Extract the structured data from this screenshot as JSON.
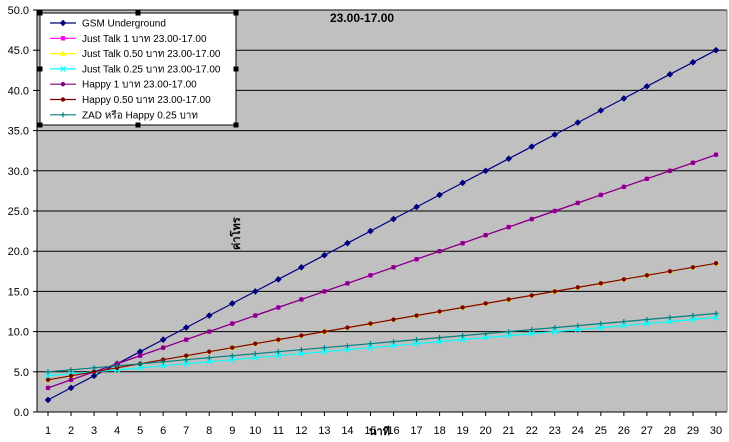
{
  "chart_data": {
    "type": "line",
    "title": "23.00-17.00",
    "xlabel": "นาที",
    "ylabel": "ค่าโทร",
    "ylim": [
      0,
      50
    ],
    "y_ticks": [
      "0.0",
      "5.0",
      "10.0",
      "15.0",
      "20.0",
      "25.0",
      "30.0",
      "35.0",
      "40.0",
      "45.0",
      "50.0"
    ],
    "x": [
      1,
      2,
      3,
      4,
      5,
      6,
      7,
      8,
      9,
      10,
      11,
      12,
      13,
      14,
      15,
      16,
      17,
      18,
      19,
      20,
      21,
      22,
      23,
      24,
      25,
      26,
      27,
      28,
      29,
      30
    ],
    "grid": "horizontal",
    "legend_position": "top-left",
    "plot_background": "#c0c0c0",
    "series": [
      {
        "name": "GSM Underground",
        "color": "#000080",
        "marker": "diamond",
        "values": [
          1.5,
          3,
          4.5,
          6,
          7.5,
          9,
          10.5,
          12,
          13.5,
          15,
          16.5,
          18,
          19.5,
          21,
          22.5,
          24,
          25.5,
          27,
          28.5,
          30,
          31.5,
          33,
          34.5,
          36,
          37.5,
          39,
          40.5,
          42,
          43.5,
          45
        ]
      },
      {
        "name": "Just Talk 1 บาท 23.00-17.00",
        "color": "#ff00ff",
        "marker": "square",
        "values": [
          3,
          4,
          5,
          6,
          7,
          8,
          9,
          10,
          11,
          12,
          13,
          14,
          15,
          16,
          17,
          18,
          19,
          20,
          21,
          22,
          23,
          24,
          25,
          26,
          27,
          28,
          29,
          30,
          31,
          32
        ]
      },
      {
        "name": "Just Talk 0.50 บาท 23.00-17.00",
        "color": "#ffff00",
        "marker": "triangle",
        "values": [
          4,
          4.5,
          5,
          5.5,
          6,
          6.5,
          7,
          7.5,
          8,
          8.5,
          9,
          9.5,
          10,
          10.5,
          11,
          11.5,
          12,
          12.5,
          13,
          13.5,
          14,
          14.5,
          15,
          15.5,
          16,
          16.5,
          17,
          17.5,
          18,
          18.5
        ]
      },
      {
        "name": "Just Talk 0.25 บาท 23.00-17.00",
        "color": "#00ffff",
        "marker": "cross",
        "values": [
          4.5,
          4.75,
          5,
          5.25,
          5.5,
          5.75,
          6,
          6.25,
          6.5,
          6.75,
          7,
          7.25,
          7.5,
          7.75,
          8,
          8.25,
          8.5,
          8.75,
          9,
          9.25,
          9.5,
          9.75,
          10,
          10.25,
          10.5,
          10.75,
          11,
          11.25,
          11.5,
          11.75
        ]
      },
      {
        "name": "Happy 1 บาท 23.00-17.00",
        "color": "#800080",
        "marker": "circle",
        "values": [
          3,
          4,
          5,
          6,
          7,
          8,
          9,
          10,
          11,
          12,
          13,
          14,
          15,
          16,
          17,
          18,
          19,
          20,
          21,
          22,
          23,
          24,
          25,
          26,
          27,
          28,
          29,
          30,
          31,
          32
        ]
      },
      {
        "name": "Happy 0.50 บาท 23.00-17.00",
        "color": "#800000",
        "marker": "circle",
        "values": [
          4,
          4.5,
          5,
          5.5,
          6,
          6.5,
          7,
          7.5,
          8,
          8.5,
          9,
          9.5,
          10,
          10.5,
          11,
          11.5,
          12,
          12.5,
          13,
          13.5,
          14,
          14.5,
          15,
          15.5,
          16,
          16.5,
          17,
          17.5,
          18,
          18.5
        ]
      },
      {
        "name": "ZAD หรือ Happy 0.25 บาท",
        "color": "#008080",
        "marker": "plus",
        "values": [
          5,
          5.25,
          5.5,
          5.75,
          6,
          6.25,
          6.5,
          6.75,
          7,
          7.25,
          7.5,
          7.75,
          8,
          8.25,
          8.5,
          8.75,
          9,
          9.25,
          9.5,
          9.75,
          10,
          10.25,
          10.5,
          10.75,
          11,
          11.25,
          11.5,
          11.75,
          12,
          12.25
        ]
      }
    ]
  }
}
